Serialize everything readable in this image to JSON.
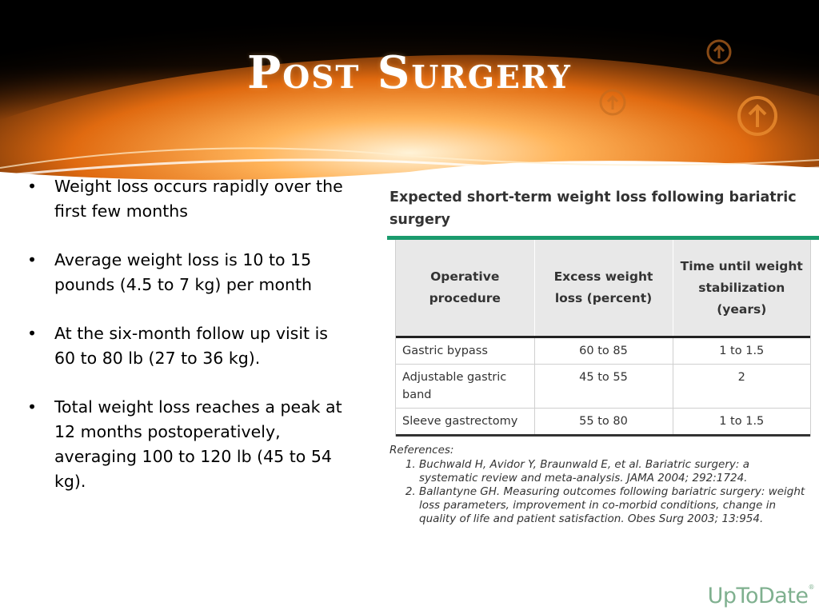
{
  "slide": {
    "title": "Post Surgery",
    "bullets": [
      "Weight loss occurs rapidly over the first few months",
      "Average weight loss is 10 to 15 pounds (4.5 to 7 kg) per month",
      "At the six-month follow up visit is 60 to 80 lb (27 to 36 kg).",
      "Total weight loss reaches a peak at 12 months postoperatively, averaging 100 to 120 lb (45 to 54 kg)."
    ]
  },
  "theme": {
    "banner_dark": "#000000",
    "banner_orange": "#f0801a",
    "icon_orange": "#e88a2e",
    "table_green": "#1a9b6d",
    "logo_green": "#7fb08f"
  },
  "icons": [
    "arrow-up-circle-icon"
  ],
  "figure": {
    "title": "Expected short-term weight loss following bariatric surgery",
    "columns": [
      "Operative procedure",
      "Excess weight loss (percent)",
      "Time until weight stabilization (years)"
    ],
    "rows": [
      [
        "Gastric bypass",
        "60 to 85",
        "1 to 1.5"
      ],
      [
        "Adjustable gastric band",
        "45 to 55",
        "2"
      ],
      [
        "Sleeve gastrectomy",
        "55 to 80",
        "1 to 1.5"
      ]
    ],
    "references_label": "References:",
    "references": [
      "Buchwald H, Avidor Y, Braunwald E, et al. Bariatric surgery: a systematic review and meta-analysis. JAMA 2004; 292:1724.",
      "Ballantyne GH. Measuring outcomes following bariatric surgery: weight loss parameters, improvement in co-morbid conditions, change in quality of life and patient satisfaction. Obes Surg 2003; 13:954."
    ],
    "logo": "UpToDate",
    "logo_mark": "®"
  }
}
